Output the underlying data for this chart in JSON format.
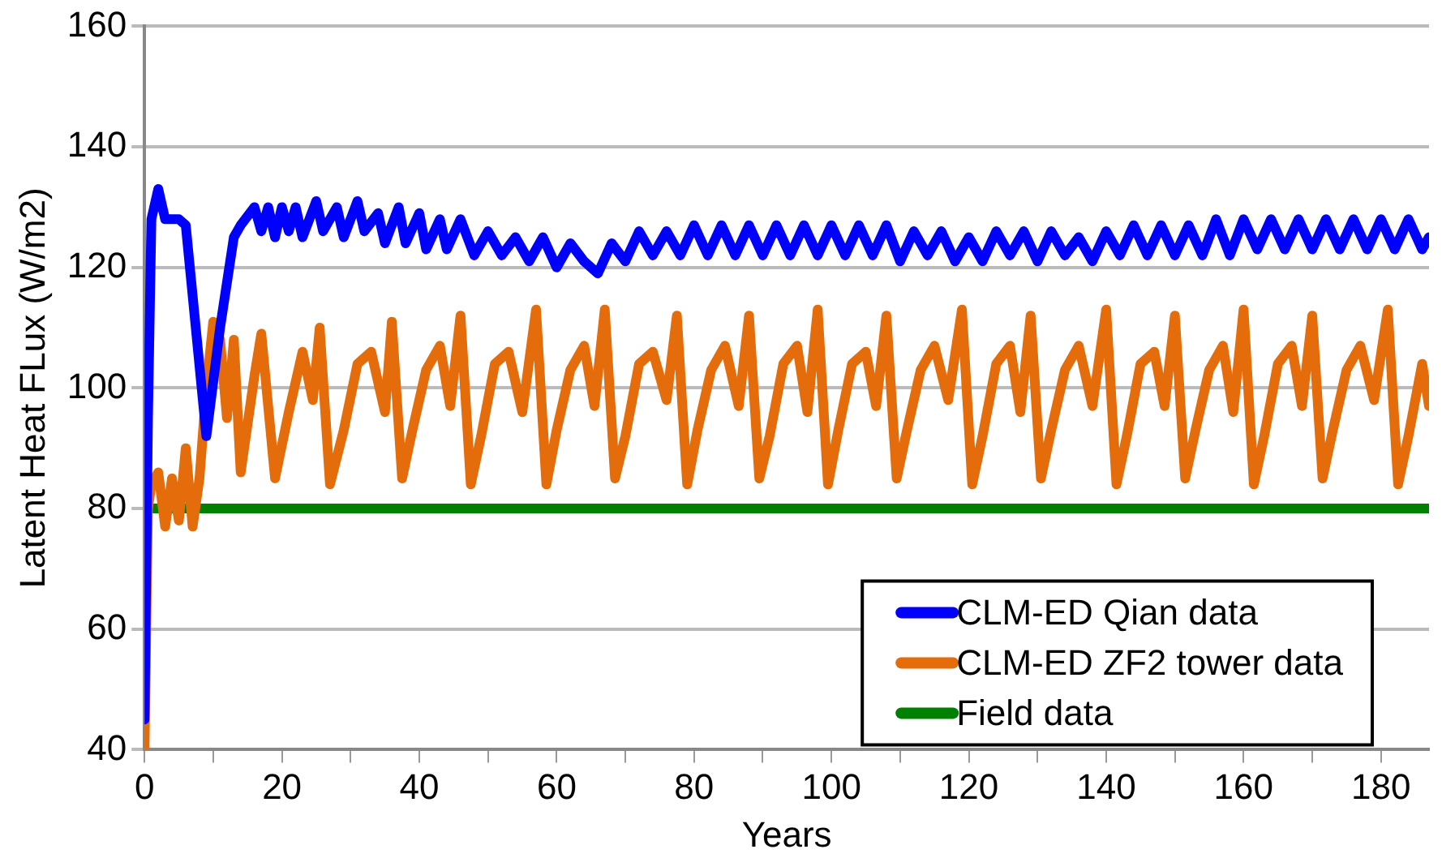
{
  "chart_data": {
    "type": "line",
    "xlabel": "Years",
    "ylabel": "Latent Heat FLux (W/m2)",
    "xlim": [
      0,
      187
    ],
    "ylim": [
      40,
      160
    ],
    "xticks": [
      0,
      {
        "value": 10,
        "label": null
      },
      20,
      {
        "value": 30,
        "label": null
      },
      40,
      {
        "value": 50,
        "label": null
      },
      60,
      {
        "value": 70,
        "label": null
      },
      80,
      {
        "value": 90,
        "label": null
      },
      100,
      {
        "value": 110,
        "label": null
      },
      120,
      {
        "value": 130,
        "label": null
      },
      140,
      {
        "value": 150,
        "label": null
      },
      160,
      {
        "value": 170,
        "label": null
      },
      180
    ],
    "yticks": [
      40,
      60,
      80,
      100,
      120,
      140,
      160
    ],
    "grid": "y",
    "legend": "bottom right",
    "marker": "none",
    "line_style": "solid",
    "series": [
      {
        "name": "CLM-ED Qian data",
        "color": "#0000ff",
        "x": [
          0,
          0.5,
          1,
          2,
          3,
          5,
          6,
          9,
          11,
          13,
          14,
          16,
          17,
          18,
          19,
          20,
          21,
          22,
          23,
          25,
          26,
          28,
          29,
          31,
          32,
          34,
          35,
          37,
          38,
          40,
          41,
          43,
          44,
          46,
          48,
          50,
          52,
          54,
          56,
          58,
          60,
          62,
          64,
          66,
          68,
          70,
          72,
          74,
          76,
          78,
          80,
          82,
          84,
          86,
          88,
          90,
          92,
          94,
          96,
          98,
          100,
          102,
          104,
          106,
          108,
          110,
          112,
          114,
          116,
          118,
          120,
          122,
          124,
          126,
          128,
          130,
          132,
          134,
          136,
          138,
          140,
          142,
          144,
          146,
          148,
          150,
          152,
          154,
          156,
          158,
          160,
          162,
          164,
          166,
          168,
          170,
          172,
          174,
          176,
          178,
          180,
          182,
          184,
          186,
          187
        ],
        "values": [
          45,
          95,
          128,
          133,
          128,
          128,
          127,
          92,
          110,
          125,
          127,
          130,
          126,
          130,
          125,
          130,
          126,
          130,
          125,
          131,
          126,
          130,
          125,
          131,
          126,
          129,
          124,
          130,
          124,
          129,
          123,
          128,
          123,
          128,
          122,
          126,
          122,
          125,
          121,
          125,
          120,
          124,
          121,
          119,
          124,
          121,
          126,
          122,
          126,
          122,
          127,
          122,
          127,
          122,
          127,
          122,
          127,
          122,
          127,
          122,
          127,
          122,
          127,
          122,
          127,
          121,
          126,
          122,
          126,
          121,
          125,
          121,
          126,
          122,
          126,
          121,
          126,
          122,
          125,
          121,
          126,
          122,
          127,
          122,
          127,
          122,
          127,
          122,
          128,
          122,
          128,
          123,
          128,
          123,
          128,
          123,
          128,
          123,
          128,
          123,
          128,
          123,
          128,
          123,
          125
        ]
      },
      {
        "name": "CLM-ED ZF2 tower data",
        "color": "#e46c0a",
        "x": [
          0,
          0.5,
          1,
          2,
          3,
          4,
          5,
          6,
          7,
          8,
          9,
          10,
          11,
          12,
          13,
          14,
          16,
          17,
          19,
          21,
          23,
          24.5,
          25.5,
          27,
          29,
          31,
          33,
          35,
          36,
          37.5,
          39,
          41,
          43,
          44.5,
          46,
          47.5,
          49,
          51,
          53,
          55,
          57,
          58.5,
          60,
          62,
          64,
          65.5,
          67,
          68.5,
          70,
          72,
          74,
          76,
          77.5,
          79,
          80.5,
          82.5,
          84.5,
          86.5,
          88,
          89.5,
          91,
          93,
          95,
          96.5,
          98,
          99.5,
          101,
          103,
          105,
          106.5,
          108,
          109.5,
          111,
          113,
          115,
          117,
          119,
          120.5,
          122,
          124,
          126,
          127.5,
          129,
          130.5,
          132,
          134,
          136,
          138,
          140,
          141.5,
          143,
          145,
          147,
          148.5,
          150,
          151.5,
          153,
          155,
          157,
          158.5,
          160,
          161.5,
          163,
          165,
          167,
          168.5,
          170,
          171.5,
          173,
          175,
          177,
          179,
          181,
          182.5,
          184,
          186,
          187
        ],
        "values": [
          40,
          80,
          84,
          86,
          77,
          85,
          78,
          90,
          77,
          85,
          100,
          111,
          108,
          95,
          108,
          86,
          102,
          109,
          85,
          96,
          106,
          98,
          110,
          84,
          93,
          104,
          106,
          96,
          111,
          85,
          93,
          103,
          107,
          97,
          112,
          84,
          92,
          104,
          106,
          96,
          113,
          84,
          93,
          103,
          107,
          97,
          113,
          85,
          92,
          104,
          106,
          98,
          112,
          84,
          93,
          103,
          107,
          97,
          112,
          85,
          92,
          104,
          107,
          96,
          113,
          84,
          93,
          104,
          106,
          97,
          112,
          85,
          93,
          103,
          107,
          98,
          113,
          84,
          92,
          104,
          107,
          96,
          112,
          85,
          93,
          103,
          107,
          97,
          113,
          84,
          92,
          104,
          106,
          97,
          112,
          85,
          93,
          103,
          107,
          96,
          113,
          84,
          92,
          104,
          107,
          97,
          112,
          85,
          93,
          103,
          107,
          98,
          113,
          84,
          92,
          104,
          97
        ]
      },
      {
        "name": "Field data",
        "color": "#008000",
        "x": [
          0,
          187
        ],
        "values": [
          80,
          80
        ]
      }
    ]
  }
}
